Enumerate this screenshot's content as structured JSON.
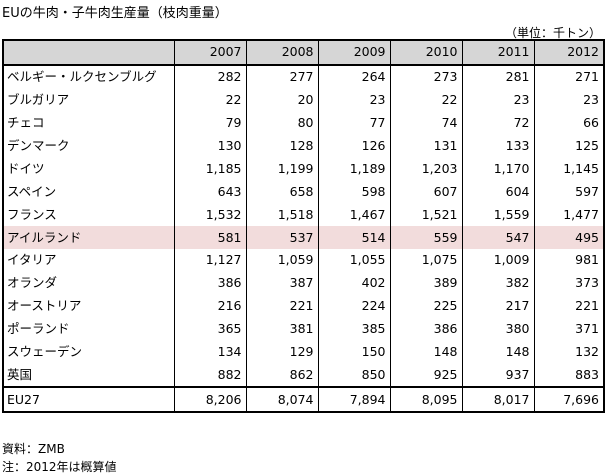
{
  "title": "EUの牛肉・子牛肉生産量（枝肉重量）",
  "unit": "（単位：千トン）",
  "years": [
    "2007",
    "2008",
    "2009",
    "2010",
    "2011",
    "2012"
  ],
  "rows": [
    {
      "name": "ベルギー・ルクセンブルグ",
      "values": [
        "282",
        "277",
        "264",
        "273",
        "281",
        "271"
      ]
    },
    {
      "name": "ブルガリア",
      "values": [
        "22",
        "20",
        "23",
        "22",
        "23",
        "23"
      ]
    },
    {
      "name": "チェコ",
      "values": [
        "79",
        "80",
        "77",
        "74",
        "72",
        "66"
      ]
    },
    {
      "name": "デンマーク",
      "values": [
        "130",
        "128",
        "126",
        "131",
        "133",
        "125"
      ]
    },
    {
      "name": "ドイツ",
      "values": [
        "1,185",
        "1,199",
        "1,189",
        "1,203",
        "1,170",
        "1,145"
      ]
    },
    {
      "name": "スペイン",
      "values": [
        "643",
        "658",
        "598",
        "607",
        "604",
        "597"
      ]
    },
    {
      "name": "フランス",
      "values": [
        "1,532",
        "1,518",
        "1,467",
        "1,521",
        "1,559",
        "1,477"
      ]
    },
    {
      "name": "アイルランド",
      "values": [
        "581",
        "537",
        "514",
        "559",
        "547",
        "495"
      ],
      "highlight": true
    },
    {
      "name": "イタリア",
      "values": [
        "1,127",
        "1,059",
        "1,055",
        "1,075",
        "1,009",
        "981"
      ]
    },
    {
      "name": "オランダ",
      "values": [
        "386",
        "387",
        "402",
        "389",
        "382",
        "373"
      ]
    },
    {
      "name": "オーストリア",
      "values": [
        "216",
        "221",
        "224",
        "225",
        "217",
        "221"
      ]
    },
    {
      "name": "ポーランド",
      "values": [
        "365",
        "381",
        "385",
        "386",
        "380",
        "371"
      ]
    },
    {
      "name": "スウェーデン",
      "values": [
        "134",
        "129",
        "150",
        "148",
        "148",
        "132"
      ]
    },
    {
      "name": "英国",
      "values": [
        "882",
        "862",
        "850",
        "925",
        "937",
        "883"
      ]
    }
  ],
  "total": {
    "name": "EU27",
    "values": [
      "8,206",
      "8,074",
      "7,894",
      "8,095",
      "8,017",
      "7,696"
    ]
  },
  "source": "資料：ZMB",
  "note": "注：2012年は概算値",
  "colors": {
    "header_bg": "#d6d6d6",
    "highlight_bg": "#f2dcdc"
  }
}
